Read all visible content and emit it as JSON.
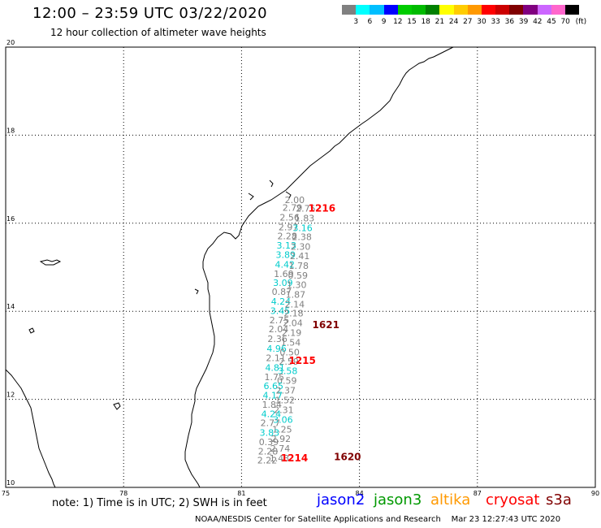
{
  "header": {
    "title": "12:00 – 23:59 UTC 03/22/2020",
    "subtitle": "12 hour collection of altimeter wave heights"
  },
  "legend": {
    "colors": [
      "#808080",
      "#00ffff",
      "#00bfff",
      "#0000ff",
      "#00cc00",
      "#00bb00",
      "#008000",
      "#ffff00",
      "#ffcc00",
      "#ff9900",
      "#ff0000",
      "#cc0000",
      "#800000",
      "#800080",
      "#cc66ff",
      "#ff66cc",
      "#000000"
    ],
    "labels": [
      "3",
      "6",
      "9",
      "12",
      "15",
      "18",
      "21",
      "24",
      "27",
      "30",
      "33",
      "36",
      "39",
      "42",
      "45",
      "70",
      "(ft)"
    ]
  },
  "map": {
    "lon_range": [
      75,
      90
    ],
    "lat_range": [
      10,
      20
    ],
    "lon_ticks": [
      "75",
      "78",
      "81",
      "84",
      "87",
      "90"
    ],
    "lat_ticks": [
      "10",
      "12",
      "14",
      "16",
      "18",
      "20"
    ]
  },
  "observations": [
    {
      "lat": 16.46,
      "lon": 82.1,
      "text": "2.00",
      "color": "#808080"
    },
    {
      "lat": 16.28,
      "lon": 82.04,
      "text": "2.79",
      "color": "#808080"
    },
    {
      "lat": 16.26,
      "lon": 82.38,
      "text": "2.75",
      "color": "#808080"
    },
    {
      "lat": 16.06,
      "lon": 81.97,
      "text": "2.56",
      "color": "#808080"
    },
    {
      "lat": 16.04,
      "lon": 82.35,
      "text": "1.83",
      "color": "#808080"
    },
    {
      "lat": 15.84,
      "lon": 81.94,
      "text": "2.97",
      "color": "#808080"
    },
    {
      "lat": 15.82,
      "lon": 82.3,
      "text": "3.16",
      "color": "#00cccc"
    },
    {
      "lat": 15.64,
      "lon": 81.91,
      "text": "2.28",
      "color": "#808080"
    },
    {
      "lat": 15.62,
      "lon": 82.28,
      "text": "2.38",
      "color": "#808080"
    },
    {
      "lat": 15.42,
      "lon": 81.89,
      "text": "3.13",
      "color": "#00cccc"
    },
    {
      "lat": 15.4,
      "lon": 82.25,
      "text": "2.30",
      "color": "#808080"
    },
    {
      "lat": 15.21,
      "lon": 81.87,
      "text": "3.89",
      "color": "#00cccc"
    },
    {
      "lat": 15.18,
      "lon": 82.23,
      "text": "2.41",
      "color": "#808080"
    },
    {
      "lat": 14.99,
      "lon": 81.85,
      "text": "4.42",
      "color": "#00cccc"
    },
    {
      "lat": 14.96,
      "lon": 82.2,
      "text": "1.78",
      "color": "#808080"
    },
    {
      "lat": 14.78,
      "lon": 81.82,
      "text": "1.69",
      "color": "#808080"
    },
    {
      "lat": 14.74,
      "lon": 82.18,
      "text": "0.59",
      "color": "#808080"
    },
    {
      "lat": 14.58,
      "lon": 81.8,
      "text": "3.09",
      "color": "#00cccc"
    },
    {
      "lat": 14.53,
      "lon": 82.15,
      "text": "1.30",
      "color": "#808080"
    },
    {
      "lat": 14.37,
      "lon": 81.77,
      "text": "0.87",
      "color": "#808080"
    },
    {
      "lat": 14.31,
      "lon": 82.12,
      "text": "1.87",
      "color": "#808080"
    },
    {
      "lat": 14.15,
      "lon": 81.75,
      "text": "4.24",
      "color": "#00cccc"
    },
    {
      "lat": 14.09,
      "lon": 82.1,
      "text": "2.14",
      "color": "#808080"
    },
    {
      "lat": 13.94,
      "lon": 81.73,
      "text": "3.45",
      "color": "#00cccc"
    },
    {
      "lat": 13.88,
      "lon": 82.07,
      "text": "2.18",
      "color": "#808080"
    },
    {
      "lat": 13.73,
      "lon": 81.71,
      "text": "2.75",
      "color": "#808080"
    },
    {
      "lat": 13.66,
      "lon": 82.05,
      "text": "2.04",
      "color": "#808080"
    },
    {
      "lat": 13.52,
      "lon": 81.69,
      "text": "2.04",
      "color": "#808080"
    },
    {
      "lat": 13.44,
      "lon": 82.02,
      "text": "2.19",
      "color": "#808080"
    },
    {
      "lat": 13.3,
      "lon": 81.66,
      "text": "2.36",
      "color": "#808080"
    },
    {
      "lat": 13.22,
      "lon": 82.0,
      "text": "1.54",
      "color": "#808080"
    },
    {
      "lat": 13.08,
      "lon": 81.64,
      "text": "4.96",
      "color": "#00cccc"
    },
    {
      "lat": 13.0,
      "lon": 81.97,
      "text": "0.50",
      "color": "#808080"
    },
    {
      "lat": 12.87,
      "lon": 81.62,
      "text": "2.11",
      "color": "#808080"
    },
    {
      "lat": 12.79,
      "lon": 81.95,
      "text": "2.59",
      "color": "#808080"
    },
    {
      "lat": 12.65,
      "lon": 81.6,
      "text": "4.81",
      "color": "#00cccc"
    },
    {
      "lat": 12.57,
      "lon": 81.92,
      "text": "3.58",
      "color": "#00cccc"
    },
    {
      "lat": 12.44,
      "lon": 81.58,
      "text": "1.75",
      "color": "#808080"
    },
    {
      "lat": 12.35,
      "lon": 81.9,
      "text": "0.59",
      "color": "#808080"
    },
    {
      "lat": 12.23,
      "lon": 81.56,
      "text": "6.65",
      "color": "#00cccc"
    },
    {
      "lat": 12.13,
      "lon": 81.87,
      "text": "2.37",
      "color": "#808080"
    },
    {
      "lat": 12.02,
      "lon": 81.54,
      "text": "4.17",
      "color": "#00cccc"
    },
    {
      "lat": 11.91,
      "lon": 81.85,
      "text": "1.52",
      "color": "#808080"
    },
    {
      "lat": 11.81,
      "lon": 81.52,
      "text": "1.84",
      "color": "#808080"
    },
    {
      "lat": 11.69,
      "lon": 81.82,
      "text": "2.31",
      "color": "#808080"
    },
    {
      "lat": 11.6,
      "lon": 81.5,
      "text": "4.24",
      "color": "#00cccc"
    },
    {
      "lat": 11.47,
      "lon": 81.8,
      "text": "3.06",
      "color": "#00cccc"
    },
    {
      "lat": 11.39,
      "lon": 81.48,
      "text": "2.77",
      "color": "#808080"
    },
    {
      "lat": 11.25,
      "lon": 81.78,
      "text": "1.25",
      "color": "#808080"
    },
    {
      "lat": 11.17,
      "lon": 81.46,
      "text": "3.83",
      "color": "#00cccc"
    },
    {
      "lat": 11.03,
      "lon": 81.75,
      "text": "2.92",
      "color": "#808080"
    },
    {
      "lat": 10.96,
      "lon": 81.44,
      "text": "0.39",
      "color": "#808080"
    },
    {
      "lat": 10.81,
      "lon": 81.73,
      "text": "2.74",
      "color": "#808080"
    },
    {
      "lat": 10.75,
      "lon": 81.42,
      "text": "2.28",
      "color": "#808080"
    },
    {
      "lat": 10.59,
      "lon": 81.71,
      "text": "1.43",
      "color": "#808080"
    },
    {
      "lat": 10.54,
      "lon": 81.4,
      "text": "2.22",
      "color": "#808080"
    }
  ],
  "pass_labels": [
    {
      "lat": 16.26,
      "lon": 82.7,
      "text": "1216",
      "color": "#ff0000"
    },
    {
      "lat": 13.62,
      "lon": 82.8,
      "text": "1621",
      "color": "#800000"
    },
    {
      "lat": 12.8,
      "lon": 82.2,
      "text": "1215",
      "color": "#ff0000"
    },
    {
      "lat": 10.59,
      "lon": 82.0,
      "text": "1214",
      "color": "#ff0000"
    },
    {
      "lat": 10.62,
      "lon": 83.35,
      "text": "1620",
      "color": "#800000"
    }
  ],
  "note": "note:  1) Time is in UTC;  2) SWH is in feet",
  "satellites": [
    {
      "name": "jason2",
      "color": "#0000ff"
    },
    {
      "name": "jason3",
      "color": "#009900"
    },
    {
      "name": "altika",
      "color": "#ff9900"
    },
    {
      "name": "cryosat",
      "color": "#ff0000"
    },
    {
      "name": "s3a",
      "color": "#800000"
    }
  ],
  "footer": {
    "credit": "NOAA/NESDIS Center for Satellite Applications and Research",
    "timestamp": "Mar 23 12:27:43 UTC 2020"
  }
}
